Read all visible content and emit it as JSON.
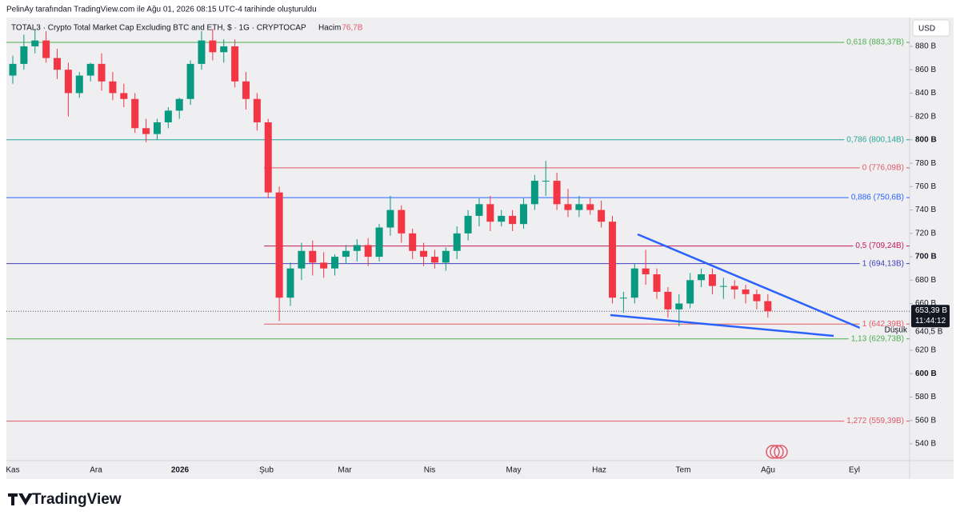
{
  "header": {
    "attribution": "PelinAy tarafından TradingView.com ile Ağu 01, 2026 08:15 UTC-4 tarihinde oluşturuldu",
    "logo": "TradingView"
  },
  "chart_data": {
    "type": "candlestick",
    "title": "TOTAL3 · Crypto Total Market Cap Excluding BTC and ETH, $ · 1G · CRYPTOCAP",
    "volume_label": "Hacim",
    "volume_value": "76,7B",
    "currency": "USD",
    "up_color": "#089981",
    "down_color": "#f23645",
    "open": [
      855,
      865,
      880,
      885,
      870,
      860,
      840,
      855,
      865,
      850,
      840,
      835,
      810,
      805,
      815,
      825,
      835,
      865,
      885,
      875,
      880,
      850,
      835,
      815,
      755,
      665,
      690,
      705,
      695,
      690,
      700,
      705,
      710,
      700,
      725,
      740,
      720,
      705,
      700,
      695,
      705,
      720,
      735,
      745,
      730,
      735,
      728,
      745,
      765,
      765,
      745,
      740,
      745,
      740,
      730,
      665,
      665,
      690,
      685,
      670,
      655,
      660,
      680,
      685,
      675,
      675,
      672,
      668,
      662
    ],
    "high": [
      872,
      890,
      895,
      893,
      878,
      866,
      858,
      866,
      874,
      858,
      848,
      840,
      818,
      818,
      828,
      836,
      868,
      893,
      895,
      886,
      886,
      858,
      840,
      818,
      760,
      695,
      712,
      714,
      704,
      702,
      710,
      715,
      716,
      728,
      752,
      744,
      724,
      712,
      706,
      708,
      726,
      740,
      750,
      752,
      740,
      740,
      750,
      770,
      782,
      772,
      758,
      752,
      750,
      748,
      735,
      670,
      694,
      706,
      690,
      674,
      668,
      686,
      690,
      690,
      682,
      680,
      676,
      672,
      668
    ],
    "low": [
      848,
      860,
      874,
      866,
      852,
      820,
      836,
      850,
      842,
      834,
      828,
      806,
      798,
      800,
      810,
      818,
      830,
      860,
      868,
      866,
      845,
      826,
      808,
      750,
      645,
      658,
      680,
      684,
      682,
      684,
      694,
      696,
      692,
      696,
      718,
      712,
      698,
      692,
      690,
      688,
      698,
      714,
      726,
      722,
      726,
      722,
      724,
      740,
      752,
      740,
      734,
      734,
      736,
      725,
      660,
      652,
      660,
      676,
      664,
      648,
      640.5,
      656,
      674,
      668,
      664,
      664,
      660,
      655,
      648
    ],
    "close": [
      865,
      880,
      885,
      870,
      860,
      840,
      855,
      865,
      850,
      840,
      835,
      810,
      805,
      815,
      825,
      835,
      865,
      885,
      875,
      880,
      850,
      835,
      815,
      755,
      665,
      690,
      705,
      695,
      690,
      700,
      705,
      710,
      700,
      725,
      740,
      720,
      705,
      700,
      695,
      705,
      720,
      735,
      745,
      730,
      735,
      728,
      745,
      765,
      765,
      745,
      740,
      745,
      740,
      730,
      665,
      665,
      690,
      685,
      670,
      655,
      660,
      680,
      685,
      675,
      675,
      672,
      668,
      662,
      653.39
    ],
    "ylim": [
      525.6,
      904.6
    ],
    "yticks": [
      {
        "value": 540,
        "label": "540 B"
      },
      {
        "value": 560,
        "label": "560 B"
      },
      {
        "value": 580,
        "label": "580 B"
      },
      {
        "value": 600,
        "label": "600 B"
      },
      {
        "value": 620,
        "label": "620 B"
      },
      {
        "value": 660,
        "label": "660 B"
      },
      {
        "value": 680,
        "label": "680 B"
      },
      {
        "value": 700,
        "label": "700 B"
      },
      {
        "value": 720,
        "label": "720 B"
      },
      {
        "value": 740,
        "label": "740 B"
      },
      {
        "value": 760,
        "label": "760 B"
      },
      {
        "value": 780,
        "label": "780 B"
      },
      {
        "value": 800,
        "label": "800 B"
      },
      {
        "value": 820,
        "label": "820 B"
      },
      {
        "value": 840,
        "label": "840 B"
      },
      {
        "value": 860,
        "label": "860 B"
      },
      {
        "value": 880,
        "label": "880 B"
      }
    ],
    "xlabels": [
      "Kas",
      "Ara",
      "2026",
      "Şub",
      "Mar",
      "Nis",
      "May",
      "Haz",
      "Tem",
      "Ağu",
      "Eyl"
    ],
    "levels": [
      {
        "value": 883.37,
        "label": "0,618 (883,37B)",
        "color": "#4caf50"
      },
      {
        "value": 800.14,
        "label": "0,786 (800,14B)",
        "color": "#26a69a"
      },
      {
        "value": 776.09,
        "label": "0 (776,09B)",
        "color": "#e05a6a"
      },
      {
        "value": 750.6,
        "label": "0,886 (750,6B)",
        "color": "#2962ff"
      },
      {
        "value": 709.24,
        "label": "0,5 (709,24B)",
        "color": "#c2185b"
      },
      {
        "value": 694.13,
        "label": "1 (694,13B)",
        "color": "#3f3fbf"
      },
      {
        "value": 642.39,
        "label": "1 (642,39B)",
        "color": "#e05a6a"
      },
      {
        "value": 629.73,
        "label": "1,13 (629,73B)",
        "color": "#4caf50"
      },
      {
        "value": 559.39,
        "label": "1,272 (559,39B)",
        "color": "#e05a6a"
      }
    ],
    "last_price": {
      "value": 653.39,
      "label": "653,39 B"
    },
    "countdown": "11:44:12",
    "low_marker": {
      "value": 640.5,
      "label": "640,5 B",
      "text": "Düşük"
    }
  }
}
